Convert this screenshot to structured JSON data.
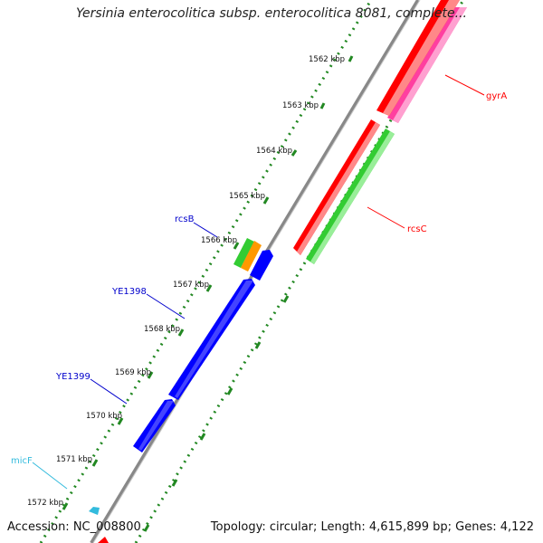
{
  "title": "Yersinia enterocolitica subsp. enterocolitica 8081, complete...",
  "footer": {
    "accession": "Accession: NC_008800",
    "stats": "Topology: circular; Length: 4,615,899 bp; Genes: 4,122"
  },
  "ruler": {
    "labels": [
      "1562 kbp",
      "1563 kbp",
      "1564 kbp",
      "1565 kbp",
      "1566 kbp",
      "1567 kbp",
      "1568 kbp",
      "1569 kbp",
      "1570 kbp",
      "1571 kbp",
      "1572 kbp"
    ]
  },
  "genes": [
    {
      "name": "gyrA",
      "color": "#ff0000"
    },
    {
      "name": "rcsC",
      "color": "#ff0000"
    },
    {
      "name": "rcsB",
      "color": "#0000cc"
    },
    {
      "name": "YE1398",
      "color": "#0000cc"
    },
    {
      "name": "YE1399",
      "color": "#0000cc"
    },
    {
      "name": "micF",
      "color": "#00aadd"
    }
  ],
  "colors": {
    "backbone": "#888888",
    "tick": "#228822",
    "red_cds": "#ff0000",
    "pink_cds": "#ff3fa0",
    "green_cds": "#33cc33",
    "blue_cds": "#0000ff",
    "orange_cds": "#ff9900",
    "cyan_rna": "#33bbdd"
  }
}
